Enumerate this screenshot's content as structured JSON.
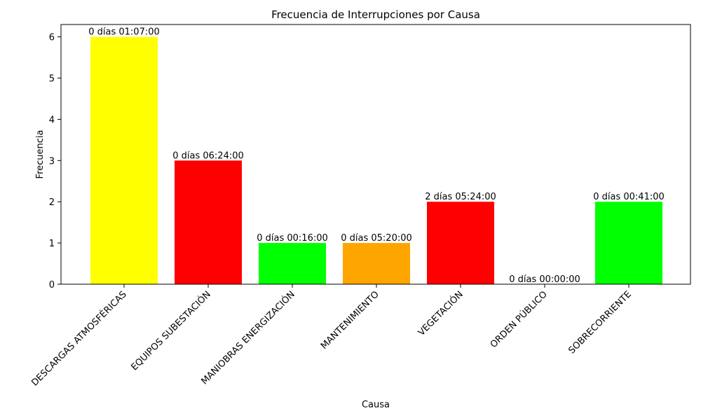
{
  "chart_data": {
    "type": "bar",
    "title": "Frecuencia de Interrupciones por Causa",
    "xlabel": "Causa",
    "ylabel": "Frecuencia",
    "ylim": [
      0,
      6.3
    ],
    "yticks": [
      0,
      1,
      2,
      3,
      4,
      5,
      6
    ],
    "grid": false,
    "categories": [
      "DESCARGAS ATMOSFÉRICAS",
      "EQUIPOS SUBESTACIÓN",
      "MANIOBRAS ENERGIZACIÓN",
      "MANTENIMIENTO",
      "VEGETACIÓN",
      "ORDEN PÚBLICO",
      "SOBRECORRIENTE"
    ],
    "values": [
      6,
      3,
      1,
      1,
      2,
      0,
      2
    ],
    "bar_labels": [
      "0 días 01:07:00",
      "0 días 06:24:00",
      "0 días 00:16:00",
      "0 días 05:20:00",
      "2 días 05:24:00",
      "0 días 00:00:00",
      "0 días 00:41:00"
    ],
    "colors": [
      "#ffff00",
      "#ff0000",
      "#00ff00",
      "#ffa500",
      "#ff0000",
      "#ff0000",
      "#00ff00"
    ]
  }
}
